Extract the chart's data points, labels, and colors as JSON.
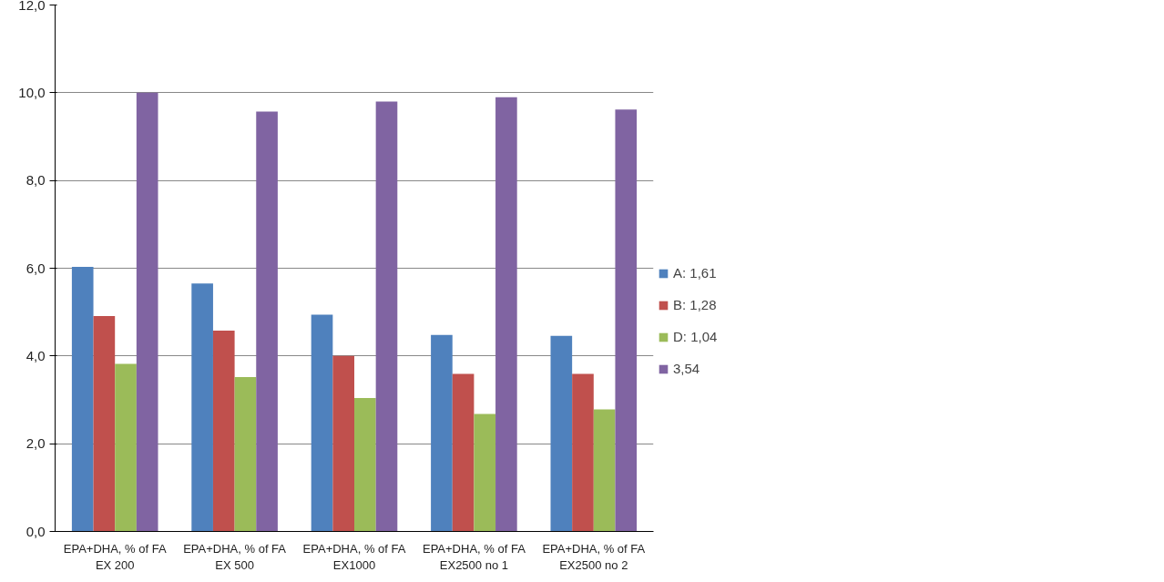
{
  "chart_data": {
    "type": "bar",
    "categories": [
      "EPA+DHA, % of FA\nEX 200",
      "EPA+DHA, % of FA\nEX 500",
      "EPA+DHA, % of FA\nEX1000",
      "EPA+DHA, % of FA\nEX2500 no 1",
      "EPA+DHA, % of FA\nEX2500 no 2"
    ],
    "series": [
      {
        "name": "A: 1,61",
        "color": "#4f81bd",
        "values": [
          6.03,
          5.65,
          4.94,
          4.48,
          4.46
        ]
      },
      {
        "name": "B: 1,28",
        "color": "#c0504d",
        "values": [
          4.91,
          4.58,
          4.0,
          3.59,
          3.59
        ]
      },
      {
        "name": "D: 1,04",
        "color": "#9bbb59",
        "values": [
          3.82,
          3.52,
          3.04,
          2.68,
          2.78
        ]
      },
      {
        "name": "3,54",
        "color": "#8064a2",
        "values": [
          10.0,
          9.57,
          9.8,
          9.9,
          9.62
        ]
      }
    ],
    "ylim": [
      0,
      12
    ],
    "yticks": [
      {
        "value": 0,
        "label": "0,0"
      },
      {
        "value": 2,
        "label": "2,0"
      },
      {
        "value": 4,
        "label": "4,0"
      },
      {
        "value": 6,
        "label": "6,0"
      },
      {
        "value": 8,
        "label": "8,0"
      },
      {
        "value": 10,
        "label": "10,0"
      },
      {
        "value": 12,
        "label": "12,0"
      }
    ],
    "grid": "y",
    "legend": "right"
  }
}
